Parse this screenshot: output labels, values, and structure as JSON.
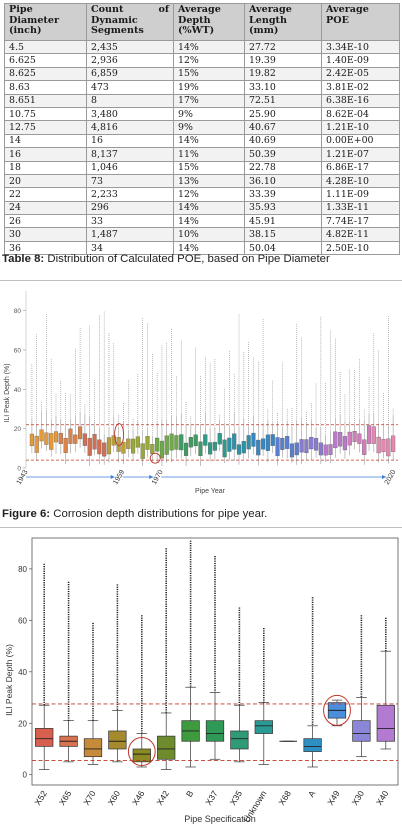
{
  "table": {
    "headers": {
      "pipe_diameter": "Pipe Diameter (inch)",
      "count_left": "Count",
      "count_right": "of",
      "count_rest": "Dynamic Segments",
      "avg_depth": "Average Depth (%WT)",
      "avg_length": "Average Length (mm)",
      "avg_poe": "Average POE"
    },
    "rows": [
      {
        "diameter": "4.5",
        "count": "2,435",
        "depth": "14%",
        "length": "27.72",
        "poe": "3.34E-10"
      },
      {
        "diameter": "6.625",
        "count": "2,936",
        "depth": "12%",
        "length": "19.39",
        "poe": "1.40E-09"
      },
      {
        "diameter": "8.625",
        "count": "6,859",
        "depth": "15%",
        "length": "19.82",
        "poe": "2.42E-05"
      },
      {
        "diameter": "8.63",
        "count": "473",
        "depth": "19%",
        "length": "33.10",
        "poe": "3.81E-02"
      },
      {
        "diameter": "8.651",
        "count": "8",
        "depth": "17%",
        "length": "72.51",
        "poe": "6.38E-16"
      },
      {
        "diameter": "10.75",
        "count": "3,480",
        "depth": "9%",
        "length": "25.90",
        "poe": "8.62E-04"
      },
      {
        "diameter": "12.75",
        "count": "4,816",
        "depth": "9%",
        "length": "40.67",
        "poe": "1.21E-10"
      },
      {
        "diameter": "14",
        "count": "16",
        "depth": "14%",
        "length": "40.69",
        "poe": "0.00E+00"
      },
      {
        "diameter": "16",
        "count": "8,137",
        "depth": "11%",
        "length": "50.39",
        "poe": "1.21E-07"
      },
      {
        "diameter": "18",
        "count": "1,046",
        "depth": "15%",
        "length": "22.78",
        "poe": "6.86E-17"
      },
      {
        "diameter": "20",
        "count": "73",
        "depth": "13%",
        "length": "36.10",
        "poe": "4.28E-10"
      },
      {
        "diameter": "22",
        "count": "2,233",
        "depth": "12%",
        "length": "33.39",
        "poe": "1.11E-09"
      },
      {
        "diameter": "24",
        "count": "296",
        "depth": "14%",
        "length": "35.93",
        "poe": "1.33E-11"
      },
      {
        "diameter": "26",
        "count": "33",
        "depth": "14%",
        "length": "45.91",
        "poe": "7.74E-17"
      },
      {
        "diameter": "30",
        "count": "1,487",
        "depth": "10%",
        "length": "38.15",
        "poe": "4.82E-11"
      },
      {
        "diameter": "36",
        "count": "34",
        "depth": "14%",
        "length": "50.04",
        "poe": "2.50E-10"
      }
    ]
  },
  "table_caption": {
    "label": "Table 8:",
    "text": "Distribution of Calculated POE, based on Pipe Diameter"
  },
  "figure6_caption": {
    "label": "Figure 6:",
    "text": "Corrosion depth distributions for pipe year."
  },
  "chart_data": [
    {
      "type": "box",
      "title": "",
      "xlabel": "Pipe Year",
      "ylabel": "ILI Peak Depth (%)",
      "ylim": [
        0,
        90
      ],
      "yticks": [
        0,
        20,
        40,
        60,
        80
      ],
      "x_markers": [
        "1943",
        "1959",
        "1970",
        "2020"
      ],
      "reference_lines": [
        4,
        22
      ],
      "grid": false,
      "colors": {
        "reference_line": "#c0392b",
        "highlight": "#c0392b",
        "arrow": "#3b7dd8"
      }
    },
    {
      "type": "box",
      "title": "",
      "xlabel": "Pipe Specification",
      "ylabel": "ILI Peak Depth (%)",
      "ylim": [
        -4,
        92
      ],
      "yticks": [
        0,
        20,
        40,
        60,
        80
      ],
      "reference_lines": [
        5.5,
        27.5
      ],
      "highlighted": [
        "X46",
        "X49"
      ],
      "categories": [
        "X52",
        "X65",
        "X70",
        "X60",
        "X46",
        "X42",
        "B",
        "X37",
        "X35",
        "Unknown",
        "X68",
        "A",
        "X49",
        "X30",
        "X40"
      ],
      "series": [
        {
          "values": [
            {
              "min": 2,
              "q1": 11,
              "median": 14,
              "q3": 18,
              "max": 27,
              "outlier_max": 82,
              "color": "#d6604d"
            },
            {
              "min": 5,
              "q1": 11,
              "median": 13,
              "q3": 15,
              "max": 21,
              "outlier_max": 75,
              "color": "#d8734f"
            },
            {
              "min": 4,
              "q1": 7,
              "median": 10,
              "q3": 14,
              "max": 21,
              "outlier_max": 59,
              "color": "#c68a3b"
            },
            {
              "min": 5,
              "q1": 10,
              "median": 13,
              "q3": 17,
              "max": 25,
              "outlier_max": 74,
              "color": "#a68a2e"
            },
            {
              "min": 3,
              "q1": 5,
              "median": 8,
              "q3": 10,
              "max": 16,
              "outlier_max": 62,
              "color": "#8c8a22"
            },
            {
              "min": 2,
              "q1": 6,
              "median": 10,
              "q3": 15,
              "max": 24,
              "outlier_max": 88,
              "color": "#6e8b2e"
            },
            {
              "min": 3,
              "q1": 13,
              "median": 17,
              "q3": 21,
              "max": 34,
              "outlier_max": 91,
              "color": "#3f9a3f"
            },
            {
              "min": 6,
              "q1": 13,
              "median": 16,
              "q3": 21,
              "max": 32,
              "outlier_max": 85,
              "color": "#2f9a57"
            },
            {
              "min": 5,
              "q1": 10,
              "median": 14,
              "q3": 17,
              "max": 27,
              "outlier_max": 65,
              "color": "#2f9b76"
            },
            {
              "min": 4,
              "q1": 16,
              "median": 19,
              "q3": 21,
              "max": 28,
              "outlier_max": 57,
              "color": "#2a9a94"
            },
            {
              "min": 13,
              "q1": 13,
              "median": 13,
              "q3": 13,
              "max": 13,
              "outlier_max": 13,
              "color": "#2b96a8"
            },
            {
              "min": 3,
              "q1": 9,
              "median": 11,
              "q3": 14,
              "max": 19,
              "outlier_max": 69,
              "color": "#2e8fc2"
            },
            {
              "min": 19,
              "q1": 22,
              "median": 25,
              "q3": 28,
              "max": 29,
              "outlier_max": 29,
              "color": "#4a8edc"
            },
            {
              "min": 7,
              "q1": 13,
              "median": 16,
              "q3": 21,
              "max": 30,
              "outlier_max": 62,
              "color": "#8a86d8"
            },
            {
              "min": 10,
              "q1": 13,
              "median": 18,
              "q3": 27,
              "max": 48,
              "outlier_max": 61,
              "color": "#b27ad0"
            }
          ]
        }
      ],
      "colors": {
        "reference_line": "#c0392b",
        "highlight": "#c0392b"
      }
    }
  ]
}
